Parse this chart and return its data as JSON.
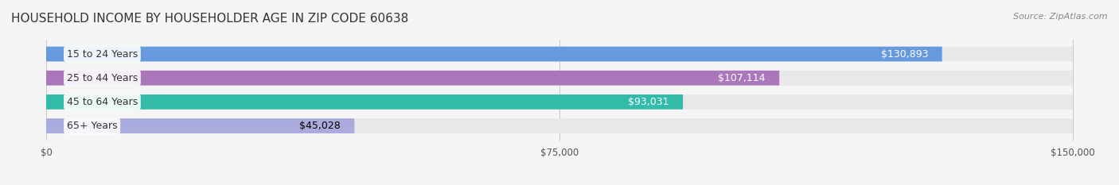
{
  "title": "HOUSEHOLD INCOME BY HOUSEHOLDER AGE IN ZIP CODE 60638",
  "source": "Source: ZipAtlas.com",
  "categories": [
    "15 to 24 Years",
    "25 to 44 Years",
    "45 to 64 Years",
    "65+ Years"
  ],
  "values": [
    130893,
    107114,
    93031,
    45028
  ],
  "bar_colors": [
    "#6699dd",
    "#aa77bb",
    "#33bbaa",
    "#aaaadd"
  ],
  "bar_label_colors": [
    "white",
    "white",
    "white",
    "black"
  ],
  "xlim": [
    0,
    150000
  ],
  "xticks": [
    0,
    75000,
    150000
  ],
  "xtick_labels": [
    "$0",
    "$75,000",
    "$150,000"
  ],
  "value_labels": [
    "$130,893",
    "$107,114",
    "$93,031",
    "$45,028"
  ],
  "background_color": "#f5f5f5",
  "bar_background_color": "#e8e8e8",
  "title_fontsize": 11,
  "source_fontsize": 8,
  "label_fontsize": 9,
  "tick_fontsize": 8.5
}
